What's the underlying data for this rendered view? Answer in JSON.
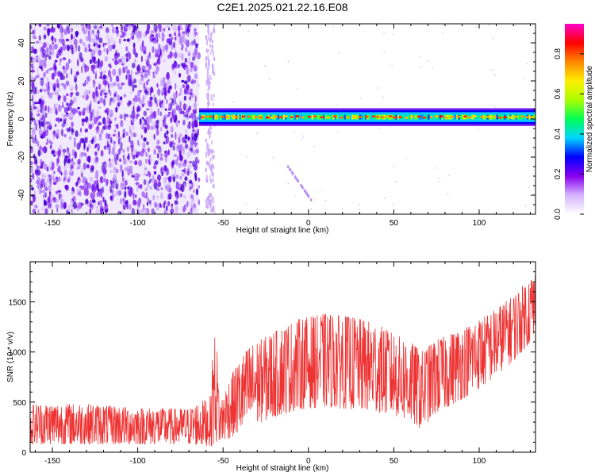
{
  "title": "C2E1.2025.021.22.16.E08",
  "chart_data": [
    {
      "type": "heatmap",
      "xlabel": "Height of straight line (km)",
      "ylabel": "Frequency (Hz)",
      "xlim": [
        -163,
        133
      ],
      "ylim": [
        -50,
        50
      ],
      "xticks": [
        -150,
        -100,
        -50,
        0,
        50,
        100
      ],
      "yticks": [
        -40,
        -20,
        0,
        20,
        40
      ],
      "colorbar": {
        "label": "Normalized spectral amplitude",
        "range": [
          0,
          0.95
        ],
        "ticks": [
          0.0,
          0.2,
          0.4,
          0.6,
          0.8
        ],
        "colormap": [
          "#ffffff",
          "#d6b4ff",
          "#8800ee",
          "#0000ff",
          "#00d5ff",
          "#00ff55",
          "#aaff00",
          "#ffee00",
          "#ff8800",
          "#ff0000",
          "#ff00cc"
        ]
      },
      "regions": [
        {
          "name": "noise",
          "x": [
            -163,
            -64
          ],
          "freq": [
            -50,
            50
          ],
          "amplitude": 0.1
        },
        {
          "name": "scatter",
          "x": [
            -60,
            -55
          ],
          "freq": [
            -50,
            50
          ],
          "amplitude": 0.04
        },
        {
          "name": "tone",
          "x": [
            -64,
            133
          ],
          "freq": [
            -2,
            4
          ],
          "center_freq": 1,
          "peak_amplitude": 0.85
        },
        {
          "name": "streak",
          "x": [
            -12,
            2
          ],
          "freq": [
            -25,
            -43
          ],
          "amplitude": 0.05
        }
      ]
    },
    {
      "type": "line",
      "xlabel": "Height of straight line (km)",
      "ylabel": "SNR (10 * v/v)",
      "xlim": [
        -163,
        133
      ],
      "ylim": [
        0,
        1900
      ],
      "xticks": [
        -150,
        -100,
        -50,
        0,
        50,
        100
      ],
      "yticks": [
        0,
        500,
        1000,
        1500
      ],
      "color": "#ee3333",
      "envelope": {
        "x": [
          -163,
          -130,
          -100,
          -70,
          -57,
          -56,
          -54,
          -52,
          -45,
          -35,
          -20,
          -5,
          10,
          25,
          40,
          50,
          60,
          66,
          75,
          90,
          105,
          120,
          133
        ],
        "low": [
          80,
          80,
          80,
          80,
          60,
          60,
          100,
          100,
          150,
          250,
          350,
          430,
          450,
          430,
          400,
          370,
          300,
          230,
          390,
          530,
          690,
          910,
          1150
        ],
        "high": [
          480,
          480,
          440,
          430,
          560,
          1100,
          1200,
          480,
          780,
          1050,
          1200,
          1330,
          1380,
          1350,
          1280,
          1180,
          1100,
          1000,
          1120,
          1230,
          1370,
          1560,
          1800
        ]
      }
    }
  ]
}
